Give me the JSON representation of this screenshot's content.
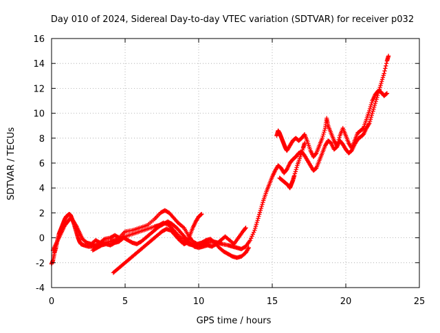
{
  "chart_data": {
    "type": "scatter",
    "title": "Day 010 of 2024, Sidereal Day-to-day VTEC variation (SDTVAR) for receiver p032",
    "xlabel": "GPS time / hours",
    "ylabel": "SDTVAR / TECUs",
    "xlim": [
      0,
      25
    ],
    "ylim": [
      -4,
      16
    ],
    "xticks": [
      0,
      5,
      10,
      15,
      20,
      25
    ],
    "yticks": [
      -4,
      -2,
      0,
      2,
      4,
      6,
      8,
      10,
      12,
      14,
      16
    ],
    "grid": true,
    "marker": "plus",
    "color": "#ff0000",
    "series": [
      {
        "points": [
          [
            0.0,
            -2.1
          ],
          [
            0.1,
            -1.8
          ],
          [
            0.2,
            -1.2
          ],
          [
            0.3,
            -0.8
          ],
          [
            0.4,
            -0.2
          ],
          [
            0.5,
            0.3
          ],
          [
            0.6,
            0.6
          ],
          [
            0.7,
            0.9
          ],
          [
            0.8,
            1.2
          ],
          [
            0.9,
            1.5
          ],
          [
            1.0,
            1.7
          ],
          [
            1.1,
            1.8
          ],
          [
            1.2,
            1.9
          ],
          [
            1.3,
            1.8
          ],
          [
            1.4,
            1.5
          ],
          [
            1.5,
            1.2
          ],
          [
            1.6,
            0.8
          ],
          [
            1.7,
            0.4
          ],
          [
            1.8,
            0.0
          ],
          [
            1.9,
            -0.3
          ],
          [
            2.0,
            -0.5
          ],
          [
            2.2,
            -0.6
          ],
          [
            2.5,
            -0.7
          ],
          [
            2.8,
            -0.7
          ],
          [
            3.0,
            -0.6
          ],
          [
            3.3,
            -0.5
          ],
          [
            3.6,
            -0.4
          ],
          [
            4.0,
            -0.3
          ],
          [
            4.3,
            -0.2
          ],
          [
            4.6,
            -0.1
          ],
          [
            5.0,
            0.1
          ],
          [
            5.5,
            0.3
          ],
          [
            6.0,
            0.5
          ],
          [
            6.5,
            0.7
          ],
          [
            7.0,
            0.9
          ],
          [
            7.3,
            1.0
          ],
          [
            7.6,
            1.2
          ],
          [
            8.0,
            1.0
          ],
          [
            8.3,
            0.6
          ],
          [
            8.6,
            0.2
          ],
          [
            9.0,
            -0.2
          ],
          [
            9.3,
            -0.5
          ],
          [
            9.6,
            -0.6
          ],
          [
            10.0,
            -0.6
          ],
          [
            10.3,
            -0.5
          ],
          [
            10.6,
            -0.4
          ],
          [
            11.0,
            -0.3
          ],
          [
            11.3,
            -0.4
          ],
          [
            11.6,
            -0.5
          ],
          [
            12.0,
            -0.6
          ],
          [
            12.3,
            -0.7
          ],
          [
            12.6,
            -0.8
          ],
          [
            12.9,
            -0.9
          ],
          [
            13.2,
            -0.7
          ],
          [
            13.5,
            -0.2
          ],
          [
            13.8,
            0.6
          ],
          [
            14.0,
            1.4
          ],
          [
            14.2,
            2.2
          ],
          [
            14.4,
            3.0
          ],
          [
            14.6,
            3.7
          ],
          [
            14.8,
            4.3
          ],
          [
            15.0,
            4.9
          ],
          [
            15.2,
            5.4
          ],
          [
            15.4,
            5.8
          ],
          [
            15.6,
            5.6
          ],
          [
            15.8,
            5.2
          ],
          [
            16.0,
            5.5
          ],
          [
            16.2,
            6.0
          ],
          [
            16.4,
            6.3
          ],
          [
            16.6,
            6.5
          ],
          [
            16.8,
            6.8
          ],
          [
            17.0,
            6.9
          ],
          [
            17.2,
            6.6
          ],
          [
            17.4,
            6.2
          ],
          [
            17.6,
            5.8
          ],
          [
            17.8,
            5.4
          ],
          [
            18.0,
            5.6
          ],
          [
            18.2,
            6.2
          ],
          [
            18.4,
            6.8
          ],
          [
            18.6,
            7.4
          ],
          [
            18.8,
            7.8
          ],
          [
            19.0,
            7.6
          ],
          [
            19.2,
            7.1
          ],
          [
            19.4,
            7.3
          ],
          [
            19.6,
            7.8
          ],
          [
            19.8,
            7.5
          ],
          [
            20.0,
            7.1
          ],
          [
            20.2,
            6.8
          ],
          [
            20.4,
            7.0
          ],
          [
            20.6,
            7.5
          ],
          [
            20.8,
            7.9
          ],
          [
            21.0,
            8.1
          ],
          [
            21.2,
            8.3
          ],
          [
            21.4,
            8.8
          ],
          [
            21.6,
            9.2
          ],
          [
            21.8,
            10.0
          ],
          [
            22.0,
            10.8
          ],
          [
            22.2,
            11.6
          ],
          [
            22.4,
            12.4
          ],
          [
            22.6,
            13.2
          ],
          [
            22.8,
            14.2
          ],
          [
            22.9,
            14.6
          ]
        ]
      },
      {
        "points": [
          [
            0.1,
            -1.0
          ],
          [
            0.3,
            -0.5
          ],
          [
            0.5,
            0.0
          ],
          [
            0.7,
            0.5
          ],
          [
            0.9,
            1.0
          ],
          [
            1.1,
            1.3
          ],
          [
            1.3,
            1.6
          ],
          [
            1.5,
            1.3
          ],
          [
            1.7,
            0.9
          ],
          [
            1.9,
            0.4
          ],
          [
            2.1,
            -0.1
          ],
          [
            2.4,
            -0.4
          ],
          [
            2.7,
            -0.5
          ],
          [
            3.0,
            -0.2
          ],
          [
            3.3,
            -0.4
          ],
          [
            3.6,
            -0.1
          ],
          [
            4.0,
            0.0
          ],
          [
            4.3,
            0.2
          ],
          [
            4.6,
            0.0
          ],
          [
            5.0,
            0.5
          ],
          [
            5.5,
            0.6
          ],
          [
            6.0,
            0.8
          ],
          [
            6.5,
            1.0
          ],
          [
            7.0,
            1.5
          ],
          [
            7.4,
            2.0
          ],
          [
            7.7,
            2.2
          ],
          [
            8.0,
            2.0
          ],
          [
            8.3,
            1.6
          ],
          [
            8.6,
            1.2
          ],
          [
            9.0,
            0.8
          ],
          [
            9.3,
            0.2
          ],
          [
            9.6,
            -0.3
          ],
          [
            9.9,
            -0.5
          ],
          [
            10.2,
            -0.4
          ],
          [
            10.5,
            -0.2
          ],
          [
            10.8,
            -0.1
          ],
          [
            11.1,
            -0.4
          ],
          [
            11.4,
            -0.8
          ],
          [
            11.7,
            -1.1
          ],
          [
            12.0,
            -1.3
          ],
          [
            12.3,
            -1.5
          ],
          [
            12.6,
            -1.6
          ],
          [
            12.9,
            -1.5
          ],
          [
            13.2,
            -1.2
          ],
          [
            13.4,
            -0.8
          ]
        ]
      },
      {
        "points": [
          [
            4.2,
            -2.8
          ],
          [
            4.5,
            -2.5
          ],
          [
            4.8,
            -2.2
          ],
          [
            5.1,
            -1.9
          ],
          [
            5.4,
            -1.6
          ],
          [
            5.7,
            -1.3
          ],
          [
            6.0,
            -1.0
          ],
          [
            6.3,
            -0.7
          ],
          [
            6.6,
            -0.4
          ],
          [
            6.9,
            -0.1
          ],
          [
            7.2,
            0.2
          ],
          [
            7.5,
            0.5
          ],
          [
            7.8,
            0.7
          ],
          [
            8.1,
            0.6
          ],
          [
            8.4,
            0.2
          ],
          [
            8.7,
            -0.2
          ],
          [
            9.0,
            -0.5
          ],
          [
            9.2,
            -0.4
          ],
          [
            9.4,
            0.2
          ],
          [
            9.6,
            0.8
          ],
          [
            9.8,
            1.3
          ],
          [
            10.0,
            1.7
          ],
          [
            10.2,
            1.9
          ]
        ]
      },
      {
        "points": [
          [
            2.8,
            -1.0
          ],
          [
            3.1,
            -0.8
          ],
          [
            3.4,
            -0.6
          ],
          [
            3.7,
            -0.5
          ],
          [
            4.0,
            -0.6
          ],
          [
            4.3,
            -0.4
          ],
          [
            4.6,
            -0.3
          ],
          [
            4.9,
            0.0
          ],
          [
            5.2,
            -0.2
          ],
          [
            5.5,
            -0.4
          ],
          [
            5.8,
            -0.5
          ],
          [
            6.1,
            -0.3
          ],
          [
            6.4,
            0.0
          ],
          [
            6.7,
            0.3
          ],
          [
            7.0,
            0.6
          ],
          [
            7.3,
            0.9
          ],
          [
            7.6,
            1.1
          ],
          [
            7.9,
            1.3
          ],
          [
            8.2,
            1.1
          ],
          [
            8.5,
            0.8
          ],
          [
            8.8,
            0.4
          ],
          [
            9.1,
            0.0
          ],
          [
            9.4,
            -0.4
          ],
          [
            9.7,
            -0.7
          ],
          [
            10.0,
            -0.8
          ],
          [
            10.3,
            -0.7
          ],
          [
            10.6,
            -0.6
          ],
          [
            10.9,
            -0.7
          ],
          [
            11.2,
            -0.5
          ],
          [
            11.5,
            -0.2
          ],
          [
            11.8,
            0.1
          ],
          [
            12.1,
            -0.2
          ],
          [
            12.4,
            -0.5
          ],
          [
            12.7,
            0.0
          ],
          [
            13.0,
            0.5
          ],
          [
            13.2,
            0.8
          ]
        ]
      },
      {
        "points": [
          [
            15.3,
            8.2
          ],
          [
            15.4,
            8.6
          ],
          [
            15.5,
            8.4
          ],
          [
            15.6,
            8.1
          ],
          [
            15.7,
            7.8
          ],
          [
            15.8,
            7.5
          ],
          [
            15.9,
            7.2
          ],
          [
            16.0,
            7.0
          ],
          [
            16.2,
            7.4
          ],
          [
            16.4,
            7.8
          ],
          [
            16.6,
            8.0
          ],
          [
            16.8,
            7.8
          ],
          [
            17.0,
            8.0
          ],
          [
            17.2,
            8.3
          ],
          [
            17.4,
            7.7
          ],
          [
            17.6,
            7.0
          ],
          [
            17.8,
            6.5
          ],
          [
            18.0,
            6.8
          ],
          [
            18.2,
            7.4
          ],
          [
            18.4,
            8.0
          ],
          [
            18.6,
            8.8
          ],
          [
            18.7,
            9.6
          ],
          [
            18.8,
            9.0
          ],
          [
            19.0,
            8.4
          ],
          [
            19.2,
            7.8
          ],
          [
            19.4,
            7.4
          ],
          [
            19.6,
            8.2
          ],
          [
            19.8,
            8.8
          ],
          [
            20.0,
            8.2
          ],
          [
            20.2,
            7.6
          ],
          [
            20.4,
            7.2
          ],
          [
            20.6,
            7.8
          ],
          [
            20.8,
            8.4
          ],
          [
            21.0,
            8.6
          ],
          [
            21.2,
            8.8
          ],
          [
            21.4,
            9.5
          ],
          [
            21.6,
            10.2
          ],
          [
            21.8,
            11.0
          ],
          [
            22.0,
            11.5
          ],
          [
            22.2,
            11.8
          ],
          [
            22.4,
            11.7
          ],
          [
            22.6,
            11.4
          ],
          [
            22.8,
            11.6
          ]
        ]
      },
      {
        "points": [
          [
            15.5,
            4.8
          ],
          [
            15.7,
            4.6
          ],
          [
            15.9,
            4.4
          ],
          [
            16.1,
            4.2
          ],
          [
            16.2,
            4.0
          ],
          [
            16.3,
            4.3
          ],
          [
            16.4,
            4.6
          ],
          [
            16.5,
            5.0
          ],
          [
            16.7,
            5.8
          ],
          [
            16.9,
            6.5
          ],
          [
            17.1,
            7.2
          ],
          [
            17.2,
            7.6
          ]
        ]
      }
    ]
  }
}
